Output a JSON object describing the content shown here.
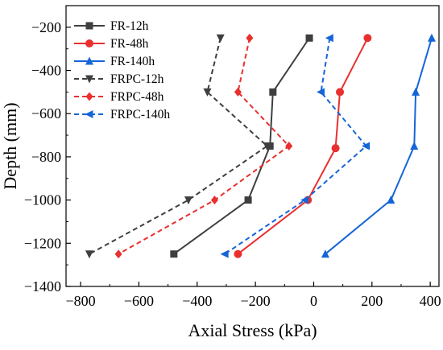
{
  "chart_data": {
    "type": "line",
    "title": "",
    "xlabel": "Axial Stress (kPa)",
    "ylabel": "Depth (mm)",
    "xlim": [
      -850,
      430
    ],
    "ylim": [
      -1400,
      -100
    ],
    "xticks": [
      -800,
      -600,
      -400,
      -200,
      0,
      200,
      400
    ],
    "yticks": [
      -200,
      -400,
      -600,
      -800,
      -1000,
      -1200,
      -1400
    ],
    "xtick_labels": [
      "−800",
      "−600",
      "−400",
      "−200",
      "0",
      "200",
      "400"
    ],
    "ytick_labels": [
      "−200",
      "−400",
      "−600",
      "−800",
      "−1000",
      "−1200",
      "−1400"
    ],
    "grid": false,
    "legend_position": "top-left",
    "series": [
      {
        "name": "FR-12h",
        "color": "#3f3f3f",
        "dashed": false,
        "marker": "square",
        "x": [
          -15,
          -140,
          -150,
          -225,
          -480
        ],
        "y": [
          -250,
          -500,
          -750,
          -1000,
          -1250
        ]
      },
      {
        "name": "FR-48h",
        "color": "#e8302e",
        "dashed": false,
        "marker": "circle",
        "x": [
          185,
          90,
          75,
          -20,
          -260
        ],
        "y": [
          -250,
          -500,
          -760,
          -1000,
          -1250
        ]
      },
      {
        "name": "FR-140h",
        "color": "#1565d8",
        "dashed": false,
        "marker": "triangle-up",
        "x": [
          405,
          350,
          345,
          265,
          40
        ],
        "y": [
          -250,
          -500,
          -750,
          -1000,
          -1250
        ]
      },
      {
        "name": "FRPC-12h",
        "color": "#3f3f3f",
        "dashed": true,
        "marker": "triangle-down",
        "x": [
          -320,
          -365,
          -160,
          -430,
          -770
        ],
        "y": [
          -250,
          -500,
          -750,
          -1000,
          -1250
        ]
      },
      {
        "name": "FRPC-48h",
        "color": "#e8302e",
        "dashed": true,
        "marker": "diamond",
        "x": [
          -220,
          -260,
          -85,
          -340,
          -670
        ],
        "y": [
          -250,
          -500,
          -750,
          -1000,
          -1250
        ]
      },
      {
        "name": "FRPC-140h",
        "color": "#1565d8",
        "dashed": true,
        "marker": "triangle-left",
        "x": [
          55,
          25,
          180,
          -30,
          -305
        ],
        "y": [
          -250,
          -500,
          -750,
          -1000,
          -1250
        ]
      }
    ]
  }
}
